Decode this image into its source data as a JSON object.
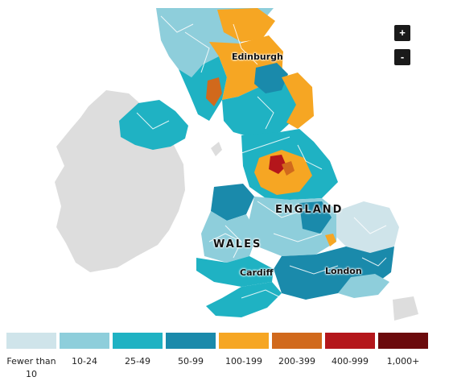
{
  "zoom": {
    "in_label": "+",
    "out_label": "-"
  },
  "places": [
    {
      "id": "edinburgh",
      "label": "Edinburgh"
    },
    {
      "id": "england",
      "label": "ENGLAND"
    },
    {
      "id": "wales",
      "label": "WALES"
    },
    {
      "id": "cardiff",
      "label": "Cardiff"
    },
    {
      "id": "london",
      "label": "London"
    }
  ],
  "legend": [
    {
      "label": "Fewer than 10",
      "color": "#cfe4ea"
    },
    {
      "label": "10-24",
      "color": "#8ecedb"
    },
    {
      "label": "25-49",
      "color": "#1fb2c3"
    },
    {
      "label": "50-99",
      "color": "#1a8aab"
    },
    {
      "label": "100-199",
      "color": "#f6a623"
    },
    {
      "label": "200-399",
      "color": "#d1691c"
    },
    {
      "label": "400-999",
      "color": "#b4161b"
    },
    {
      "label": "1,000+",
      "color": "#6b0a0c"
    }
  ],
  "colors": {
    "land_other": "#dddddd",
    "sea": "#ffffff",
    "border": "#ffffff"
  }
}
